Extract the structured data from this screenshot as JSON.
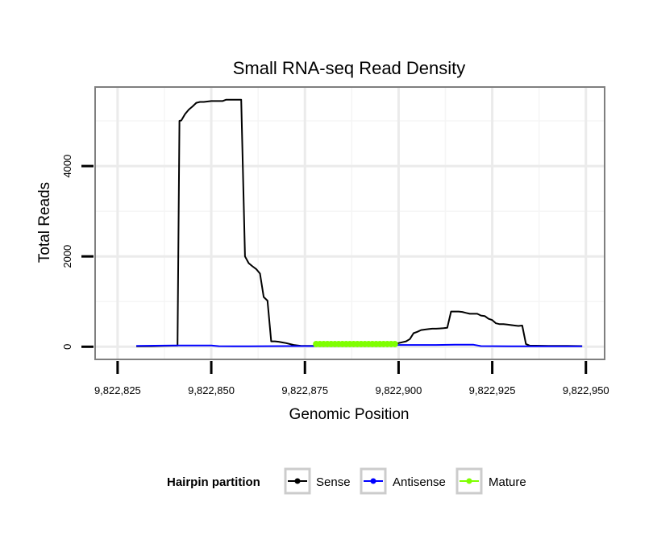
{
  "chart_data": {
    "type": "line",
    "title": "Small RNA-seq Read Density",
    "xlabel": "Genomic Position",
    "ylabel": "Total Reads",
    "xlim": [
      9822819,
      9822955
    ],
    "ylim": [
      -280,
      5750
    ],
    "x_ticks": [
      {
        "value": 9822825,
        "label": "9,822,825"
      },
      {
        "value": 9822850,
        "label": "9,822,850"
      },
      {
        "value": 9822875,
        "label": "9,822,875"
      },
      {
        "value": 9822900,
        "label": "9,822,900"
      },
      {
        "value": 9822925,
        "label": "9,822,925"
      },
      {
        "value": 9822950,
        "label": "9,822,950"
      }
    ],
    "y_ticks": [
      {
        "value": 0,
        "label": "0"
      },
      {
        "value": 2000,
        "label": "2000"
      },
      {
        "value": 4000,
        "label": "4000"
      }
    ],
    "x_minor_grid": [
      9822837.5,
      9822862.5,
      9822887.5,
      9822912.5,
      9822937.5
    ],
    "y_minor_grid": [
      1000,
      3000,
      5000
    ],
    "grid": true,
    "legend": {
      "title": "Hairpin partition",
      "position": "bottom",
      "entries": [
        {
          "name": "Sense",
          "color": "#000000"
        },
        {
          "name": "Antisense",
          "color": "#0000ff"
        },
        {
          "name": "Mature",
          "color": "#7fff00"
        }
      ]
    },
    "series": [
      {
        "name": "Sense",
        "color": "#000000",
        "x": [
          9822830,
          9822834,
          9822837,
          9822841,
          9822841.5,
          9822842,
          9822843,
          9822844,
          9822845,
          9822846,
          9822847,
          9822848,
          9822850,
          9822852,
          9822853,
          9822854,
          9822856,
          9822857,
          9822858,
          9822859,
          9822860,
          9822861,
          9822862,
          9822863,
          9822864,
          9822865,
          9822866,
          9822867,
          9822868,
          9822869,
          9822870,
          9822872,
          9822874,
          9822876,
          9822878,
          9822880,
          9822885,
          9822890,
          9822895,
          9822898,
          9822900,
          9822901,
          9822902,
          9822903,
          9822904,
          9822905,
          9822906,
          9822907,
          9822908,
          9822909,
          9822910,
          9822911,
          9822912,
          9822913,
          9822914,
          9822915,
          9822916,
          9822917,
          9822918,
          9822919,
          9822920,
          9822921,
          9822922,
          9822923,
          9822924,
          9822925,
          9822926,
          9822927,
          9822928,
          9822929,
          9822930,
          9822931,
          9822932,
          9822933,
          9822934,
          9822935,
          9822940,
          9822945,
          9822949
        ],
        "values": [
          10,
          12,
          20,
          25,
          5000,
          5010,
          5150,
          5250,
          5320,
          5400,
          5420,
          5420,
          5440,
          5440,
          5440,
          5470,
          5470,
          5470,
          5470,
          2000,
          1850,
          1780,
          1720,
          1620,
          1100,
          1020,
          120,
          120,
          110,
          95,
          80,
          40,
          20,
          20,
          18,
          18,
          18,
          18,
          18,
          30,
          80,
          100,
          120,
          170,
          300,
          330,
          370,
          380,
          390,
          400,
          400,
          405,
          410,
          420,
          780,
          780,
          780,
          770,
          750,
          730,
          730,
          730,
          690,
          680,
          620,
          590,
          520,
          500,
          500,
          490,
          480,
          470,
          460,
          470,
          60,
          25,
          20,
          18,
          15
        ]
      },
      {
        "name": "Antisense",
        "color": "#0000ff",
        "x": [
          9822830,
          9822840,
          9822850,
          9822852,
          9822856,
          9822860,
          9822870,
          9822878,
          9822900,
          9822910,
          9822915,
          9822920,
          9822922,
          9822930,
          9822940,
          9822949
        ],
        "values": [
          18,
          28,
          28,
          12,
          10,
          10,
          15,
          15,
          40,
          40,
          45,
          45,
          15,
          10,
          10,
          10
        ]
      },
      {
        "name": "Mature",
        "color": "#7fff00",
        "x": [
          9822878,
          9822879,
          9822880,
          9822881,
          9822882,
          9822883,
          9822884,
          9822885,
          9822886,
          9822887,
          9822888,
          9822889,
          9822890,
          9822891,
          9822892,
          9822893,
          9822894,
          9822895,
          9822896,
          9822897,
          9822898,
          9822899
        ],
        "values": [
          60,
          60,
          60,
          60,
          60,
          60,
          60,
          60,
          60,
          60,
          60,
          60,
          60,
          60,
          60,
          60,
          60,
          60,
          60,
          60,
          60,
          60
        ]
      }
    ]
  }
}
